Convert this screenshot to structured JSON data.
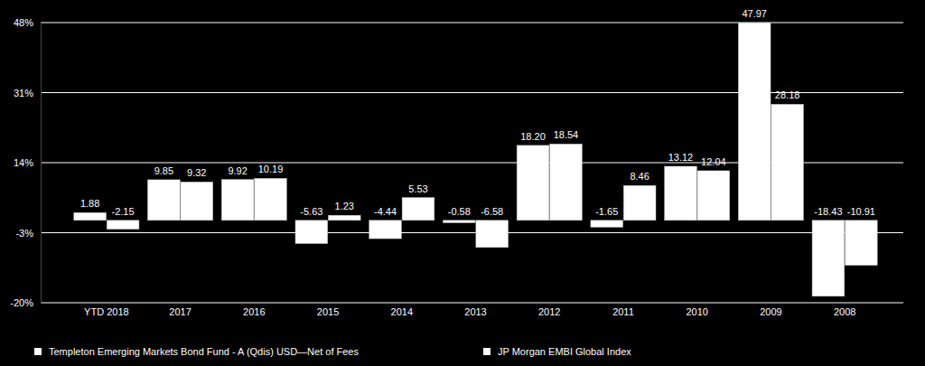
{
  "chart_data": {
    "type": "bar",
    "categories": [
      "YTD 2018",
      "2017",
      "2016",
      "2015",
      "2014",
      "2013",
      "2012",
      "2011",
      "2010",
      "2009",
      "2008"
    ],
    "series": [
      {
        "name": "Templeton Emerging Markets Bond Fund - A (Qdis) USD—Net of Fees",
        "color": "#ffffff",
        "values": [
          1.88,
          9.85,
          9.92,
          -5.63,
          -4.44,
          -0.58,
          18.2,
          -1.65,
          13.12,
          47.97,
          -18.43
        ],
        "value_labels": [
          "1.88",
          "9.85",
          "9.92",
          "-5.63",
          "-4.44",
          "-0.58",
          "18.20",
          "-1.65",
          "13.12",
          "47.97",
          "-18.43"
        ]
      },
      {
        "name": "JP Morgan EMBI Global Index",
        "color": "#ffffff",
        "values": [
          -2.15,
          9.32,
          10.19,
          1.23,
          5.53,
          -6.58,
          18.54,
          8.46,
          12.04,
          28.18,
          -10.91
        ],
        "value_labels": [
          "-2.15",
          "9.32",
          "10.19",
          "1.23",
          "5.53",
          "-6.58",
          "18.54",
          "8.46",
          "12.04",
          "28.18",
          "-10.91"
        ]
      }
    ],
    "ylim": [
      -20,
      48
    ],
    "yticks": [
      {
        "value": -20,
        "label": "-20%"
      },
      {
        "value": -3,
        "label": "-3%"
      },
      {
        "value": 14,
        "label": "14%"
      },
      {
        "value": 31,
        "label": "31%"
      },
      {
        "value": 48,
        "label": "48%"
      }
    ],
    "grid": true,
    "data_labels": true,
    "legend": "bottom"
  }
}
